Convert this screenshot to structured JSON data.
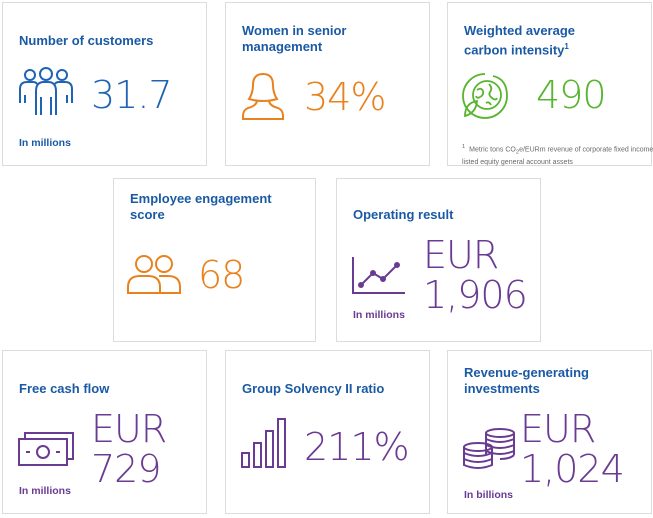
{
  "colors": {
    "title_blue": "#1a5aa5",
    "value_blue": "#1f64b4",
    "orange": "#e8821e",
    "green": "#58b530",
    "purple": "#6a3b93",
    "border": "#dcdcdc"
  },
  "cards": {
    "customers": {
      "title": "Number of customers",
      "value": "31.7",
      "note": "In millions",
      "icon": "people-group-icon"
    },
    "women": {
      "title_line1": "Women in senior",
      "title_line2": "management",
      "value": "34%",
      "icon": "woman-icon"
    },
    "carbon": {
      "title_line1": "Weighted average",
      "title_line2": "carbon intensity",
      "title_sup": "1",
      "value": "490",
      "footnote_mark": "1",
      "footnote_a": "Metric tons CO",
      "footnote_sub": "2",
      "footnote_b": "e/EURm revenue of corporate fixed income and listed equity general account assets",
      "icon": "globe-leaf-icon"
    },
    "engagement": {
      "title_line1": "Employee engagement",
      "title_line2": "score",
      "value": "68",
      "icon": "two-people-icon"
    },
    "operating": {
      "title": "Operating result",
      "value_line1": "EUR",
      "value_line2": "1,906",
      "note": "In millions",
      "icon": "line-chart-icon"
    },
    "cashflow": {
      "title": "Free cash flow",
      "value_line1": "EUR",
      "value_line2": "729",
      "note": "In millions",
      "icon": "banknote-icon"
    },
    "solvency": {
      "title": "Group Solvency II ratio",
      "value": "211%",
      "icon": "bar-chart-icon"
    },
    "investments": {
      "title_line1": "Revenue-generating",
      "title_line2": "investments",
      "value_line1": "EUR",
      "value_line2": "1,024",
      "note": "In billions",
      "icon": "coin-stack-icon"
    }
  }
}
